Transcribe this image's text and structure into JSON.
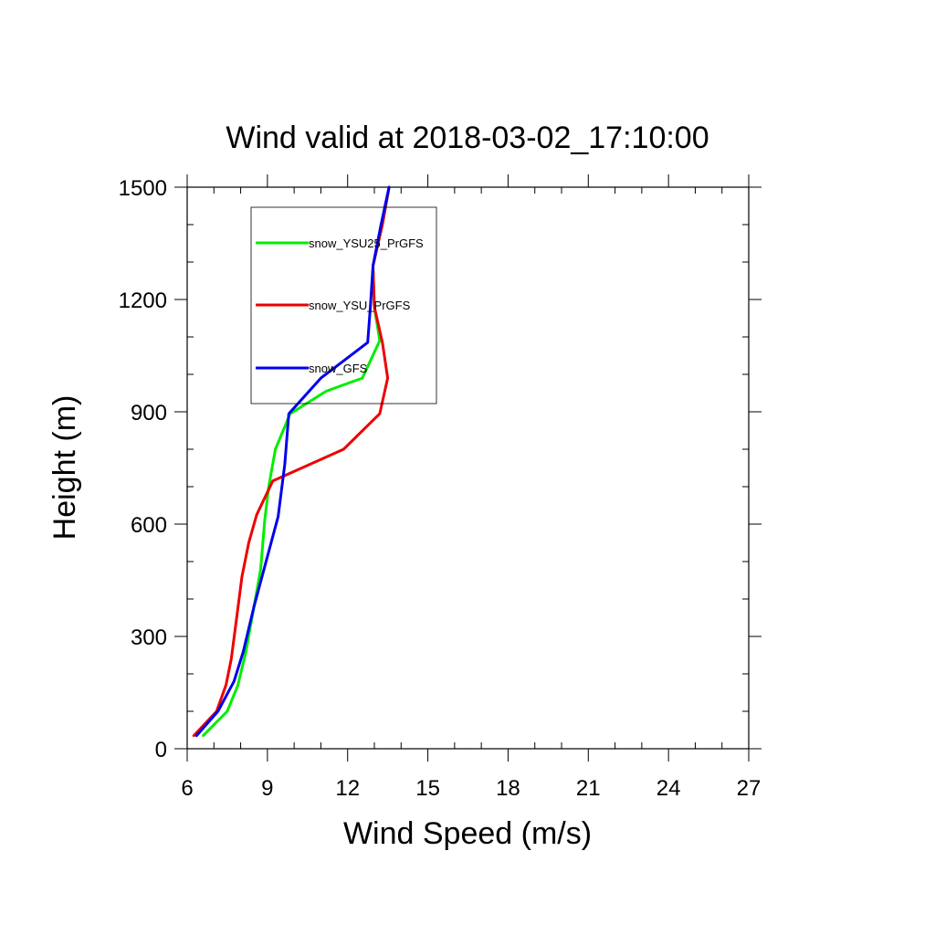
{
  "chart_data": {
    "type": "line",
    "title": "Wind valid at 2018-03-02_17:10:00",
    "xlabel": "Wind Speed (m/s)",
    "ylabel": "Height (m)",
    "xlim": [
      6,
      27
    ],
    "ylim": [
      0,
      1500
    ],
    "xticks": [
      6,
      9,
      12,
      15,
      18,
      21,
      24,
      27
    ],
    "yticks": [
      0,
      300,
      600,
      900,
      1200,
      1500
    ],
    "x_minor_step": 1,
    "y_minor_step": 100,
    "grid": false,
    "legend": {
      "placement": "top-left",
      "boxed": true
    },
    "series": [
      {
        "name": "snow_YSU25_PrGFS",
        "color": "#00ee00",
        "points": [
          [
            6.6,
            35
          ],
          [
            7.5,
            100
          ],
          [
            7.9,
            170
          ],
          [
            8.2,
            260
          ],
          [
            8.5,
            380
          ],
          [
            8.75,
            480
          ],
          [
            8.9,
            610
          ],
          [
            9.05,
            700
          ],
          [
            9.3,
            800
          ],
          [
            9.85,
            895
          ],
          [
            11.2,
            955
          ],
          [
            12.55,
            990
          ],
          [
            13.2,
            1090
          ],
          [
            13.0,
            1180
          ],
          [
            12.95,
            1290
          ],
          [
            13.3,
            1400
          ],
          [
            13.55,
            1500
          ]
        ]
      },
      {
        "name": "snow_YSU_PrGFS",
        "color": "#ee0000",
        "points": [
          [
            6.25,
            35
          ],
          [
            7.1,
            100
          ],
          [
            7.45,
            170
          ],
          [
            7.65,
            240
          ],
          [
            7.85,
            350
          ],
          [
            8.05,
            460
          ],
          [
            8.3,
            550
          ],
          [
            8.6,
            625
          ],
          [
            9.2,
            715
          ],
          [
            11.85,
            800
          ],
          [
            13.2,
            895
          ],
          [
            13.5,
            990
          ],
          [
            13.3,
            1085
          ],
          [
            13.0,
            1180
          ],
          [
            12.95,
            1290
          ],
          [
            13.3,
            1400
          ],
          [
            13.55,
            1500
          ]
        ]
      },
      {
        "name": "snow_GFS",
        "color": "#0000ee",
        "points": [
          [
            6.35,
            35
          ],
          [
            7.15,
            100
          ],
          [
            7.75,
            180
          ],
          [
            8.1,
            260
          ],
          [
            8.5,
            380
          ],
          [
            8.95,
            500
          ],
          [
            9.4,
            620
          ],
          [
            9.65,
            760
          ],
          [
            9.8,
            895
          ],
          [
            11.0,
            990
          ],
          [
            12.75,
            1085
          ],
          [
            12.85,
            1180
          ],
          [
            12.95,
            1290
          ],
          [
            13.25,
            1400
          ],
          [
            13.55,
            1500
          ]
        ]
      }
    ]
  }
}
